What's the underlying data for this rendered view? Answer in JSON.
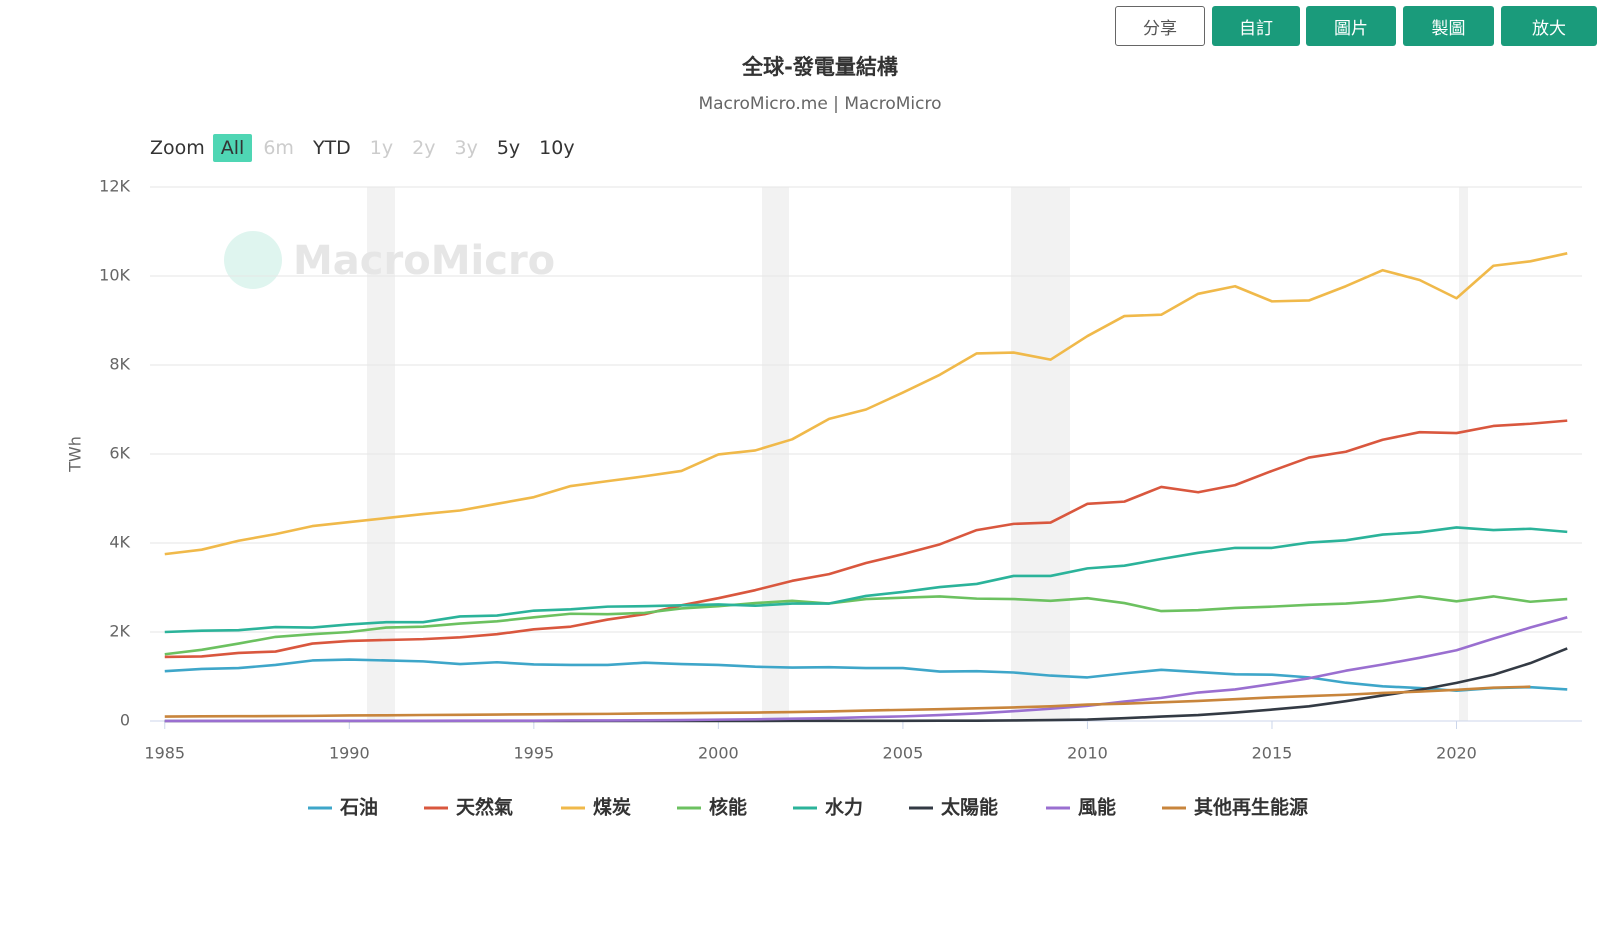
{
  "toolbar": {
    "buttons": [
      "分享",
      "自訂",
      "圖片",
      "製圖",
      "放大"
    ]
  },
  "zoom": {
    "label": "Zoom",
    "options": [
      "All",
      "6m",
      "YTD",
      "1y",
      "2y",
      "3y",
      "5y",
      "10y"
    ]
  },
  "watermark": "MacroMicro",
  "chart_data": {
    "type": "line",
    "title": "全球-發電量結構",
    "subtitle": "MacroMicro.me | MacroMicro",
    "y_label": "TWh",
    "x": [
      1985,
      1986,
      1987,
      1988,
      1989,
      1990,
      1991,
      1992,
      1993,
      1994,
      1995,
      1996,
      1997,
      1998,
      1999,
      2000,
      2001,
      2002,
      2003,
      2004,
      2005,
      2006,
      2007,
      2008,
      2009,
      2010,
      2011,
      2012,
      2013,
      2014,
      2015,
      2016,
      2017,
      2018,
      2019,
      2020,
      2021,
      2022,
      2023
    ],
    "xlim": [
      1984.6,
      2023.4
    ],
    "xticks": [
      1985,
      1990,
      1995,
      2000,
      2005,
      2010,
      2015,
      2020
    ],
    "ylim": [
      0,
      12000
    ],
    "yticks": [
      0,
      {
        "value": 2000,
        "label": "2K"
      },
      {
        "value": 4000,
        "label": "4K"
      },
      {
        "value": 6000,
        "label": "6K"
      },
      {
        "value": 8000,
        "label": "8K"
      },
      {
        "value": 10000,
        "label": "10K"
      },
      {
        "value": 12000,
        "label": "12K"
      }
    ],
    "grid": true,
    "series": [
      {
        "name": "石油",
        "color": "#3ea6c9",
        "values": [
          1120,
          1170,
          1190,
          1260,
          1360,
          1380,
          1360,
          1340,
          1280,
          1320,
          1270,
          1260,
          1260,
          1310,
          1280,
          1260,
          1220,
          1200,
          1210,
          1190,
          1190,
          1110,
          1120,
          1090,
          1020,
          980,
          1070,
          1150,
          1100,
          1050,
          1040,
          980,
          860,
          780,
          740,
          680,
          740,
          760,
          710
        ]
      },
      {
        "name": "天然氣",
        "color": "#d9573e",
        "values": [
          1440,
          1450,
          1530,
          1560,
          1740,
          1800,
          1820,
          1840,
          1880,
          1950,
          2060,
          2120,
          2280,
          2400,
          2600,
          2760,
          2940,
          3150,
          3300,
          3550,
          3750,
          3970,
          4290,
          4430,
          4460,
          4880,
          4930,
          5260,
          5140,
          5300,
          5620,
          5920,
          6050,
          6320,
          6490,
          6470,
          6630,
          6680,
          6750
        ]
      },
      {
        "name": "煤炭",
        "color": "#f0b94a",
        "values": [
          3750,
          3850,
          4050,
          4200,
          4380,
          4470,
          4560,
          4650,
          4730,
          4880,
          5030,
          5280,
          5390,
          5500,
          5620,
          5990,
          6080,
          6330,
          6790,
          7000,
          7380,
          7780,
          8260,
          8280,
          8120,
          8650,
          9100,
          9130,
          9600,
          9770,
          9430,
          9450,
          9770,
          10130,
          9910,
          9500,
          10230,
          10330,
          10510
        ]
      },
      {
        "name": "核能",
        "color": "#6cc160",
        "values": [
          1500,
          1600,
          1740,
          1890,
          1950,
          2000,
          2100,
          2120,
          2190,
          2240,
          2330,
          2410,
          2400,
          2430,
          2530,
          2580,
          2650,
          2700,
          2640,
          2740,
          2770,
          2800,
          2750,
          2740,
          2700,
          2760,
          2650,
          2470,
          2490,
          2540,
          2570,
          2610,
          2640,
          2700,
          2800,
          2690,
          2800,
          2680,
          2740
        ]
      },
      {
        "name": "水力",
        "color": "#2bb39a",
        "values": [
          2000,
          2030,
          2040,
          2110,
          2100,
          2170,
          2220,
          2220,
          2350,
          2370,
          2480,
          2510,
          2570,
          2580,
          2600,
          2620,
          2590,
          2640,
          2640,
          2810,
          2900,
          3010,
          3080,
          3260,
          3260,
          3430,
          3490,
          3640,
          3780,
          3890,
          3890,
          4010,
          4060,
          4190,
          4240,
          4350,
          4290,
          4320,
          4250
        ]
      },
      {
        "name": "太陽能",
        "color": "#333a44",
        "values": [
          0,
          0,
          0,
          0,
          0,
          0,
          0,
          0,
          0,
          0,
          0,
          1,
          1,
          1,
          1,
          1,
          2,
          3,
          3,
          4,
          5,
          6,
          8,
          12,
          20,
          32,
          63,
          99,
          134,
          190,
          256,
          330,
          445,
          574,
          700,
          856,
          1040,
          1300,
          1630
        ]
      },
      {
        "name": "風能",
        "color": "#9a6fd0",
        "values": [
          0,
          1,
          1,
          2,
          3,
          4,
          4,
          5,
          6,
          7,
          8,
          12,
          12,
          16,
          21,
          31,
          38,
          52,
          63,
          85,
          104,
          133,
          170,
          220,
          275,
          342,
          437,
          520,
          640,
          710,
          830,
          960,
          1130,
          1270,
          1420,
          1590,
          1850,
          2100,
          2330
        ]
      },
      {
        "name": "其他再生能源",
        "color": "#c8853c",
        "values": [
          100,
          105,
          108,
          110,
          115,
          125,
          128,
          135,
          140,
          145,
          150,
          155,
          160,
          170,
          175,
          185,
          190,
          200,
          215,
          235,
          250,
          265,
          285,
          305,
          330,
          370,
          390,
          420,
          450,
          490,
          530,
          560,
          590,
          630,
          660,
          700,
          750,
          770,
          null
        ]
      }
    ]
  }
}
